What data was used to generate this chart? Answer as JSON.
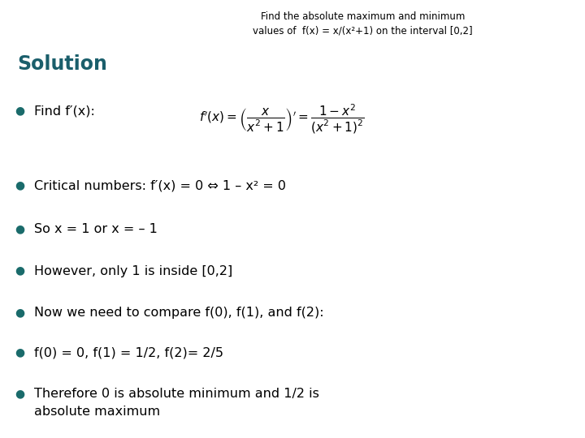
{
  "title_line1": "Find the absolute maximum and minimum",
  "title_line2": "values of  f(x) = x/(x²+1) on the interval [0,2]",
  "solution_label": "Solution",
  "bullet_color": "#1a6b6b",
  "solution_color": "#1a5e6b",
  "title_color": "#000000",
  "bg_color": "#ffffff",
  "figsize": [
    7.2,
    5.4
  ],
  "dpi": 100,
  "title_fontsize": 8.5,
  "solution_fontsize": 17,
  "bullet_text_fontsize": 11.5,
  "bullet_dot_fontsize": 10,
  "formula_fontsize": 11
}
